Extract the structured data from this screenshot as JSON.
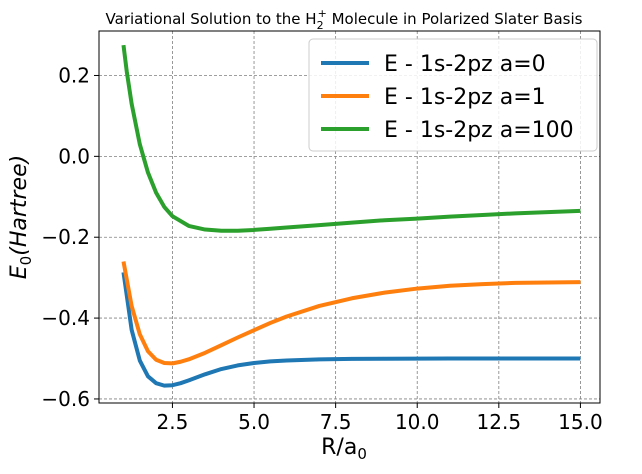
{
  "chart_data": {
    "type": "line",
    "title": {
      "prefix": "Variational Solution to the H",
      "sub": "2",
      "sup": "+",
      "suffix": " Molecule in Polarized Slater Basis"
    },
    "xlabel": {
      "base": "R/a",
      "sub": "0"
    },
    "ylabel": {
      "base": "E",
      "sub": "0",
      "rest": "(Hartree)"
    },
    "xlim": [
      0.25,
      15.6
    ],
    "ylim": [
      -0.61,
      0.31
    ],
    "xticks": [
      2.5,
      5.0,
      7.5,
      10.0,
      12.5,
      15.0
    ],
    "xtick_labels": [
      "2.5",
      "5.0",
      "7.5",
      "10.0",
      "12.5",
      "15.0"
    ],
    "yticks": [
      -0.6,
      -0.4,
      -0.2,
      0.0,
      0.2
    ],
    "ytick_labels": [
      "−0.6",
      "−0.4",
      "−0.2",
      "0.0",
      "0.2"
    ],
    "grid": true,
    "legend_position": "top-right",
    "series": [
      {
        "name": "E - 1s-2pz a=0",
        "color": "#1f77b4",
        "x": [
          1.0,
          1.25,
          1.5,
          1.75,
          2.0,
          2.25,
          2.5,
          2.75,
          3.0,
          3.5,
          4.0,
          4.5,
          5.0,
          5.5,
          6.0,
          7.0,
          8.0,
          9.0,
          10.0,
          11.0,
          12.0,
          13.0,
          14.0,
          15.0
        ],
        "y": [
          -0.287,
          -0.429,
          -0.505,
          -0.544,
          -0.561,
          -0.567,
          -0.566,
          -0.561,
          -0.554,
          -0.539,
          -0.526,
          -0.517,
          -0.511,
          -0.507,
          -0.505,
          -0.502,
          -0.501,
          -0.5005,
          -0.5002,
          -0.5001,
          -0.5,
          -0.5,
          -0.5,
          -0.5
        ]
      },
      {
        "name": "E - 1s-2pz a=1",
        "color": "#ff7f0e",
        "x": [
          1.0,
          1.25,
          1.5,
          1.75,
          2.0,
          2.25,
          2.5,
          2.75,
          3.0,
          3.5,
          4.0,
          4.5,
          5.0,
          5.5,
          6.0,
          7.0,
          8.0,
          9.0,
          10.0,
          11.0,
          12.0,
          13.0,
          14.0,
          15.0
        ],
        "y": [
          -0.26,
          -0.37,
          -0.44,
          -0.482,
          -0.503,
          -0.511,
          -0.512,
          -0.508,
          -0.502,
          -0.486,
          -0.467,
          -0.448,
          -0.43,
          -0.412,
          -0.396,
          -0.37,
          -0.351,
          -0.337,
          -0.327,
          -0.32,
          -0.316,
          -0.313,
          -0.312,
          -0.311
        ]
      },
      {
        "name": "E - 1s-2pz a=100",
        "color": "#2ca02c",
        "x": [
          1.0,
          1.1,
          1.25,
          1.5,
          1.75,
          2.0,
          2.25,
          2.5,
          3.0,
          3.5,
          4.0,
          4.5,
          5.0,
          5.5,
          6.0,
          7.0,
          8.0,
          9.0,
          10.0,
          11.0,
          12.0,
          13.0,
          14.0,
          15.0
        ],
        "y": [
          0.275,
          0.21,
          0.13,
          0.03,
          -0.04,
          -0.09,
          -0.125,
          -0.148,
          -0.172,
          -0.181,
          -0.184,
          -0.184,
          -0.182,
          -0.179,
          -0.176,
          -0.17,
          -0.164,
          -0.158,
          -0.154,
          -0.149,
          -0.145,
          -0.141,
          -0.138,
          -0.135
        ]
      }
    ]
  }
}
